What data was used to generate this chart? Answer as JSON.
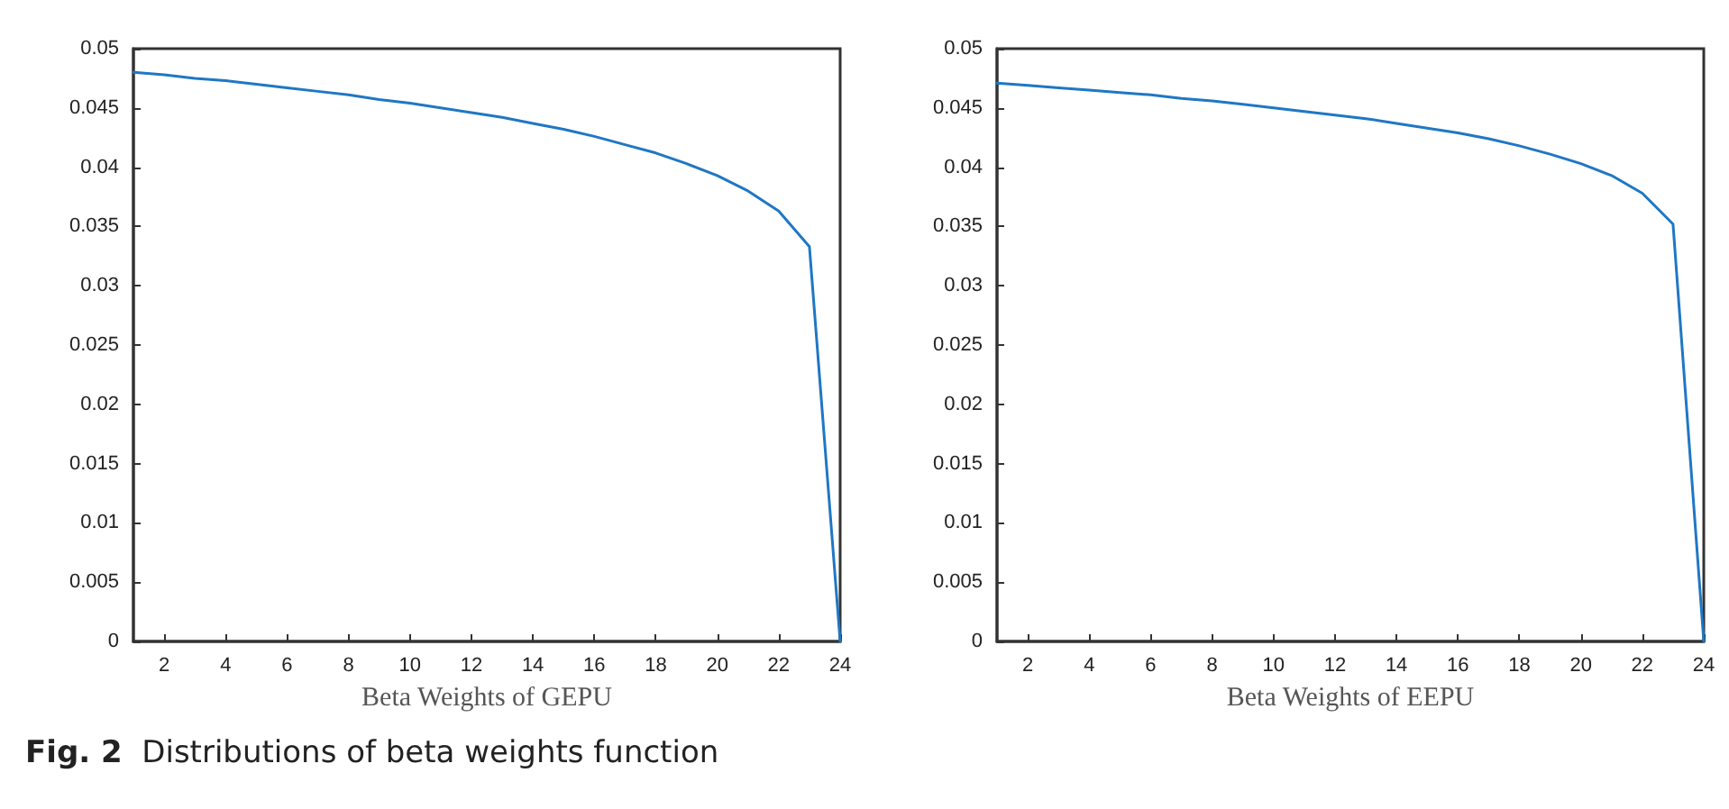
{
  "chart_data": [
    {
      "type": "line",
      "xlabel": "Beta Weights of GEPU",
      "x": [
        1,
        2,
        3,
        4,
        5,
        6,
        7,
        8,
        9,
        10,
        11,
        12,
        13,
        14,
        15,
        16,
        17,
        18,
        19,
        20,
        21,
        22,
        23,
        24
      ],
      "series": [
        {
          "color": "#1f77c4",
          "values": [
            0.048,
            0.0478,
            0.0475,
            0.0473,
            0.047,
            0.0467,
            0.0464,
            0.0461,
            0.0457,
            0.0454,
            0.045,
            0.0446,
            0.0442,
            0.0437,
            0.0432,
            0.0426,
            0.0419,
            0.0412,
            0.0403,
            0.0393,
            0.038,
            0.0363,
            0.0333,
            0
          ]
        }
      ],
      "xlim": [
        1,
        24
      ],
      "xticks": [
        2,
        4,
        6,
        8,
        10,
        12,
        14,
        16,
        18,
        20,
        22,
        24
      ],
      "ylim": [
        0,
        0.05
      ],
      "yticks": [
        0,
        0.005,
        0.01,
        0.015,
        0.02,
        0.025,
        0.03,
        0.035,
        0.04,
        0.045,
        0.05
      ],
      "grid": false,
      "marker": "none",
      "line_style": "solid",
      "annotations": [
        "Fig. 2  Distributions of beta weights function"
      ]
    },
    {
      "type": "line",
      "xlabel": "Beta Weights of EEPU",
      "x": [
        1,
        2,
        3,
        4,
        5,
        6,
        7,
        8,
        9,
        10,
        11,
        12,
        13,
        14,
        15,
        16,
        17,
        18,
        19,
        20,
        21,
        22,
        23,
        24
      ],
      "series": [
        {
          "color": "#1f77c4",
          "values": [
            0.0471,
            0.0469,
            0.0467,
            0.0465,
            0.0463,
            0.0461,
            0.0458,
            0.0456,
            0.0453,
            0.045,
            0.0447,
            0.0444,
            0.0441,
            0.0437,
            0.0433,
            0.0429,
            0.0424,
            0.0418,
            0.0411,
            0.0403,
            0.0393,
            0.0378,
            0.0352,
            0
          ]
        }
      ],
      "xlim": [
        1,
        24
      ],
      "xticks": [
        2,
        4,
        6,
        8,
        10,
        12,
        14,
        16,
        18,
        20,
        22,
        24
      ],
      "ylim": [
        0,
        0.05
      ],
      "yticks": [
        0,
        0.005,
        0.01,
        0.015,
        0.02,
        0.025,
        0.03,
        0.035,
        0.04,
        0.045,
        0.05
      ],
      "grid": false,
      "marker": "none",
      "line_style": "solid"
    }
  ]
}
